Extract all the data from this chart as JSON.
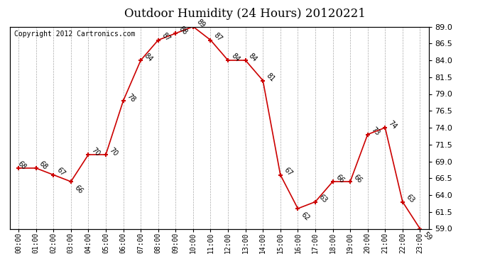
{
  "title": "Outdoor Humidity (24 Hours) 20120221",
  "copyright_text": "Copyright 2012 Cartronics.com",
  "hours": [
    "00:00",
    "01:00",
    "02:00",
    "03:00",
    "04:00",
    "05:00",
    "06:00",
    "07:00",
    "08:00",
    "09:00",
    "10:00",
    "11:00",
    "12:00",
    "13:00",
    "14:00",
    "15:00",
    "16:00",
    "17:00",
    "18:00",
    "19:00",
    "20:00",
    "21:00",
    "22:00",
    "23:00"
  ],
  "values": [
    68,
    68,
    67,
    66,
    70,
    70,
    78,
    84,
    87,
    88,
    89,
    87,
    84,
    84,
    81,
    67,
    62,
    63,
    66,
    66,
    73,
    74,
    63,
    59
  ],
  "ylim_min": 59.0,
  "ylim_max": 89.0,
  "yticks": [
    59.0,
    61.5,
    64.0,
    66.5,
    69.0,
    71.5,
    74.0,
    76.5,
    79.0,
    81.5,
    84.0,
    86.5,
    89.0
  ],
  "line_color": "#cc0000",
  "marker_color": "#cc0000",
  "bg_color": "#ffffff",
  "grid_color": "#aaaaaa",
  "title_fontsize": 12,
  "annotation_fontsize": 7,
  "copyright_fontsize": 7
}
